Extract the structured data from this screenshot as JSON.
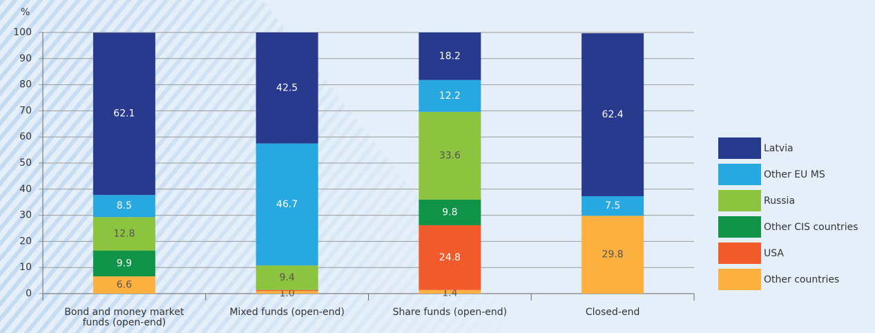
{
  "chart_data": {
    "type": "stacked_bar",
    "y_label": "%",
    "categories": [
      "Bond and money market funds (open-end)",
      "Mixed funds (open-end)",
      "Share funds (open-end)",
      "Closed-end"
    ],
    "series": [
      {
        "name": "Latvia",
        "color": "#283a8e",
        "values": [
          62.1,
          42.5,
          18.2,
          62.4
        ],
        "value_labels": [
          "62.1",
          "42.5",
          "18.2",
          "62.4"
        ]
      },
      {
        "name": "Other EU MS",
        "color": "#27a8e0",
        "values": [
          8.5,
          46.7,
          12.2,
          7.5
        ],
        "value_labels": [
          "8.5",
          "46.7",
          "12.2",
          "7.5"
        ]
      },
      {
        "name": "Russia",
        "color": "#8cc440",
        "values": [
          12.8,
          9.4,
          33.6,
          null
        ],
        "value_labels": [
          "12.8",
          "9.4",
          "33.6",
          null
        ]
      },
      {
        "name": "Other CIS countries",
        "color": "#0e9347",
        "values": [
          9.9,
          null,
          9.8,
          null
        ],
        "value_labels": [
          "9.9",
          null,
          "9.8",
          null
        ]
      },
      {
        "name": "USA",
        "color": "#f15a2b",
        "values": [
          null,
          0.4,
          24.8,
          null
        ],
        "value_labels": [
          null,
          null,
          "24.8",
          null
        ]
      },
      {
        "name": "Other countries",
        "color": "#fbb040",
        "values": [
          6.6,
          1.0,
          1.4,
          29.8
        ],
        "value_labels": [
          "6.6",
          "1.0",
          "1.4",
          "29.8"
        ]
      }
    ],
    "ylim": [
      0,
      100
    ],
    "yticks": [
      0,
      10,
      20,
      30,
      40,
      50,
      60,
      70,
      80,
      90,
      100
    ],
    "grid": true,
    "legend": "right"
  }
}
